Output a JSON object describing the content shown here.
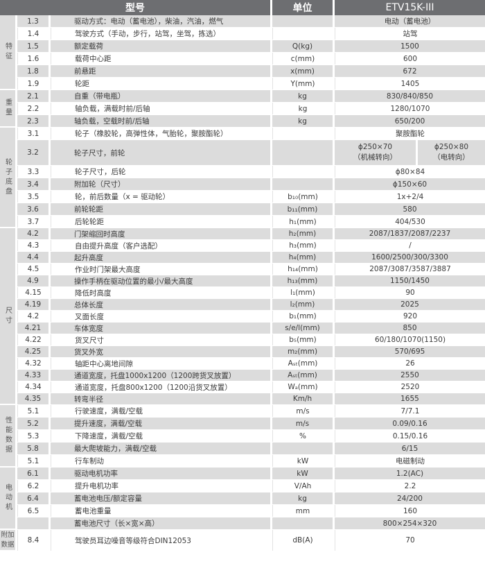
{
  "header": {
    "model_label": "型号",
    "unit_label": "单位",
    "model_value": "ETV15K-III"
  },
  "groups": [
    {
      "label": "特征",
      "rows": [
        {
          "no": "1.3",
          "desc": "驱动方式：电动（蓄电池），柴油，汽油，燃气",
          "unit": "",
          "value": "电动（蓄电池）"
        },
        {
          "no": "1.4",
          "desc": "驾驶方式（手动，步行，站驾，坐驾，拣选）",
          "unit": "",
          "value": "站驾"
        },
        {
          "no": "1.5",
          "desc": "额定载荷",
          "unit": "Q(kg)",
          "value": "1500"
        },
        {
          "no": "1.6",
          "desc": "载荷中心距",
          "unit": "c(mm)",
          "value": "600"
        },
        {
          "no": "1.8",
          "desc": "前悬距",
          "unit": "x(mm)",
          "value": "672"
        },
        {
          "no": "1.9",
          "desc": "轮距",
          "unit": "Y(mm)",
          "value": "1405"
        }
      ]
    },
    {
      "label": "重量",
      "rows": [
        {
          "no": "2.1",
          "desc": "自重（带电瓶）",
          "unit": "kg",
          "value": "830/840/850"
        },
        {
          "no": "2.2",
          "desc": "轴负载，满载时前/后轴",
          "unit": "kg",
          "value": "1280/1070"
        },
        {
          "no": "2.3",
          "desc": "轴负载，空载时前/后轴",
          "unit": "kg",
          "value": "650/200"
        }
      ]
    },
    {
      "label": "轮子底盘",
      "rows": [
        {
          "no": "3.1",
          "desc": "轮子（橡胶轮，高弹性体，气胎轮，聚胺酯轮）",
          "unit": "",
          "value": "聚胺酯轮"
        },
        {
          "no": "3.2",
          "desc": "轮子尺寸，前轮",
          "unit": "",
          "value_a": "ϕ250×70",
          "value_a2": "（机械转向）",
          "value_b": "ϕ250×80",
          "value_b2": "（电转向）"
        },
        {
          "no": "3.3",
          "desc": "轮子尺寸，后轮",
          "unit": "",
          "value": "ϕ80×84"
        },
        {
          "no": "3.4",
          "desc": "附加轮（尺寸）",
          "unit": "",
          "value": "ϕ150×60"
        },
        {
          "no": "3.5",
          "desc": "轮，前后数量（x = 驱动轮）",
          "unit": "b₁₀(mm)",
          "value": "1x+2/4"
        },
        {
          "no": "3.6",
          "desc": "前轮轮距",
          "unit": "b₁₁(mm)",
          "value": "580"
        },
        {
          "no": "3.7",
          "desc": "后轮轮距",
          "unit": "h₁(mm)",
          "value": "404/530"
        }
      ]
    },
    {
      "label": "尺寸",
      "rows": [
        {
          "no": "4.2",
          "desc": "门架缩回时高度",
          "unit": "h₂(mm)",
          "value": "2087/1837/2087/2237"
        },
        {
          "no": "4.3",
          "desc": "自由提升高度（客户选配）",
          "unit": "h₃(mm)",
          "value": "/"
        },
        {
          "no": "4.4",
          "desc": "起升高度",
          "unit": "h₄(mm)",
          "value": "1600/2500/300/3300"
        },
        {
          "no": "4.5",
          "desc": "作业时门架最大高度",
          "unit": "h₁₄(mm)",
          "value": "2087/3087/3587/3887"
        },
        {
          "no": "4.9",
          "desc": "操作手柄在驱动位置的最小/最大高度",
          "unit": "h₁₃(mm)",
          "value": "1150/1450"
        },
        {
          "no": "4.15",
          "desc": "降低时高度",
          "unit": "l₁(mm)",
          "value": "90"
        },
        {
          "no": "4.19",
          "desc": "总体长度",
          "unit": "l₂(mm)",
          "value": "2025"
        },
        {
          "no": "4.2",
          "desc": "叉面长度",
          "unit": "b₁(mm)",
          "value": "920"
        },
        {
          "no": "4.21",
          "desc": "车体宽度",
          "unit": "s/e/l(mm)",
          "value": "850"
        },
        {
          "no": "4.22",
          "desc": "货叉尺寸",
          "unit": "b₅(mm)",
          "value": "60/180/1070(1150)"
        },
        {
          "no": "4.25",
          "desc": "货叉外宽",
          "unit": "m₂(mm)",
          "value": "570/695"
        },
        {
          "no": "4.32",
          "desc": "轴距中心离地间隙",
          "unit": "Aₛₜ(mm)",
          "value": "26"
        },
        {
          "no": "4.33",
          "desc": "通道宽度，托盘1000x1200（1200跨货叉放置）",
          "unit": "Aₛₜ(mm)",
          "value": "2550"
        },
        {
          "no": "4.34",
          "desc": "通道宽度，托盘800x1200（1200沿货叉放置）",
          "unit": "Wₐ(mm)",
          "value": "2520"
        },
        {
          "no": "4.35",
          "desc": "转弯半径",
          "unit": "Km/h",
          "value": "1655"
        }
      ]
    },
    {
      "label": "性能数据",
      "rows": [
        {
          "no": "5.1",
          "desc": "行驶速度，满载/空载",
          "unit": "m/s",
          "value": "7/7.1"
        },
        {
          "no": "5.2",
          "desc": "提升速度，满载/空载",
          "unit": "m/s",
          "value": "0.09/0.16"
        },
        {
          "no": "5.3",
          "desc": "下降速度，满载/空载",
          "unit": "%",
          "value": "0.15/0.16"
        },
        {
          "no": "5.8",
          "desc": "最大爬坡能力，满载/空载",
          "unit": "",
          "value": "6/15"
        },
        {
          "no": "5.1",
          "desc": "行车制动",
          "unit": "kW",
          "value": "电磁制动"
        }
      ]
    },
    {
      "label": "电动机",
      "rows": [
        {
          "no": "6.1",
          "desc": "驱动电机功率",
          "unit": "kW",
          "value": "1.2(AC)"
        },
        {
          "no": "6.2",
          "desc": "提升电机功率",
          "unit": "V/Ah",
          "value": "2.2"
        },
        {
          "no": "6.4",
          "desc": "蓄电池电压/额定容量",
          "unit": "kg",
          "value": "24/200"
        },
        {
          "no": "6.5",
          "desc": "蓄电池重量",
          "unit": "mm",
          "value": "160"
        },
        {
          "no": "",
          "desc": "蓄电池尺寸（长×宽×高）",
          "unit": "",
          "value": "800×254×320"
        }
      ]
    },
    {
      "label": "附加数据",
      "rows": [
        {
          "no": "8.4",
          "desc": "驾驶员耳边噪音等级符合DIN12053",
          "unit": "dB(A)",
          "value": "70"
        }
      ]
    }
  ]
}
